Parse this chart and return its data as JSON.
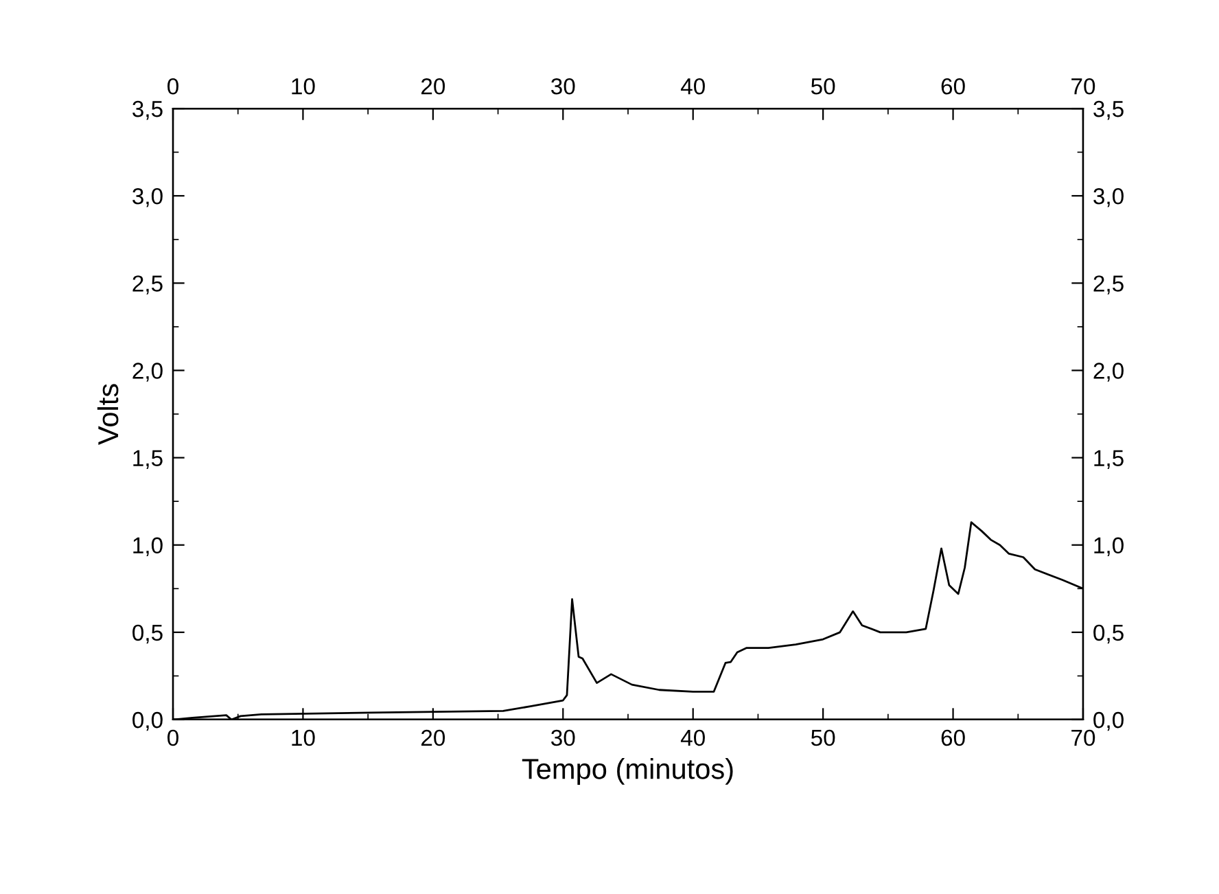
{
  "chart_data": {
    "type": "line",
    "xlabel": "Tempo (minutos)",
    "ylabel": "Volts",
    "color": "#000000",
    "marker": "none",
    "line_style": "solid",
    "grid": false,
    "legend": false,
    "x": [
      0,
      1.5,
      4.1,
      4.5,
      5.2,
      6.8,
      15.2,
      25.4,
      27.5,
      30.0,
      30.3,
      30.7,
      31.2,
      31.5,
      32.6,
      33.7,
      35.3,
      37.4,
      40.0,
      41.6,
      42.5,
      42.9,
      43.4,
      44.1,
      45.8,
      47.9,
      50.0,
      51.3,
      52.3,
      53.0,
      54.4,
      56.4,
      57.9,
      58.5,
      59.1,
      59.7,
      60.4,
      60.9,
      61.4,
      62.2,
      62.9,
      63.6,
      64.3,
      65.4,
      66.3,
      68.4,
      70
    ],
    "values": [
      0,
      0.01,
      0.025,
      0,
      0.02,
      0.03,
      0.04,
      0.05,
      0.076,
      0.11,
      0.14,
      0.69,
      0.36,
      0.35,
      0.21,
      0.26,
      0.2,
      0.17,
      0.16,
      0.16,
      0.325,
      0.33,
      0.385,
      0.41,
      0.41,
      0.43,
      0.46,
      0.5,
      0.62,
      0.54,
      0.5,
      0.5,
      0.52,
      0.74,
      0.98,
      0.77,
      0.72,
      0.87,
      1.13,
      1.08,
      1.03,
      1.0,
      0.95,
      0.93,
      0.86,
      0.8,
      0.75
    ],
    "xlim": [
      0,
      70
    ],
    "ylim": [
      0,
      3.5
    ],
    "x2lim": [
      0,
      70
    ],
    "y2lim": [
      0,
      3.5
    ],
    "xticks": [
      0,
      {
        "value": 5,
        "label": null
      },
      10,
      {
        "value": 15,
        "label": null
      },
      20,
      {
        "value": 25,
        "label": null
      },
      30,
      {
        "value": 35,
        "label": null
      },
      40,
      {
        "value": 45,
        "label": null
      },
      50,
      {
        "value": 55,
        "label": null
      },
      60,
      {
        "value": 65,
        "label": null
      },
      70
    ],
    "x2ticks": [
      0,
      {
        "value": 5,
        "label": null
      },
      10,
      {
        "value": 15,
        "label": null
      },
      20,
      {
        "value": 25,
        "label": null
      },
      30,
      {
        "value": 35,
        "label": null
      },
      40,
      {
        "value": 45,
        "label": null
      },
      50,
      {
        "value": 55,
        "label": null
      },
      60,
      {
        "value": 65,
        "label": null
      },
      70
    ],
    "yticks": [
      {
        "value": 0,
        "label": "0,0"
      },
      {
        "value": 0.25,
        "label": null
      },
      {
        "value": 0.5,
        "label": "0,5"
      },
      {
        "value": 0.75,
        "label": null
      },
      {
        "value": 1.0,
        "label": "1,0"
      },
      {
        "value": 1.25,
        "label": null
      },
      {
        "value": 1.5,
        "label": "1,5"
      },
      {
        "value": 1.75,
        "label": null
      },
      {
        "value": 2.0,
        "label": "2,0"
      },
      {
        "value": 2.25,
        "label": null
      },
      {
        "value": 2.5,
        "label": "2,5"
      },
      {
        "value": 2.75,
        "label": null
      },
      {
        "value": 3.0,
        "label": "3,0"
      },
      {
        "value": 3.25,
        "label": null
      },
      {
        "value": 3.5,
        "label": "3,5"
      }
    ],
    "y2ticks": [
      {
        "value": 0,
        "label": "0,0"
      },
      {
        "value": 0.25,
        "label": null
      },
      {
        "value": 0.5,
        "label": "0,5"
      },
      {
        "value": 0.75,
        "label": null
      },
      {
        "value": 1.0,
        "label": "1,0"
      },
      {
        "value": 1.25,
        "label": null
      },
      {
        "value": 1.5,
        "label": "1,5"
      },
      {
        "value": 1.75,
        "label": null
      },
      {
        "value": 2.0,
        "label": "2,0"
      },
      {
        "value": 2.25,
        "label": null
      },
      {
        "value": 2.5,
        "label": "2,5"
      },
      {
        "value": 2.75,
        "label": null
      },
      {
        "value": 3.0,
        "label": "3,0"
      },
      {
        "value": 3.25,
        "label": null
      },
      {
        "value": 3.5,
        "label": "3,5"
      }
    ]
  }
}
